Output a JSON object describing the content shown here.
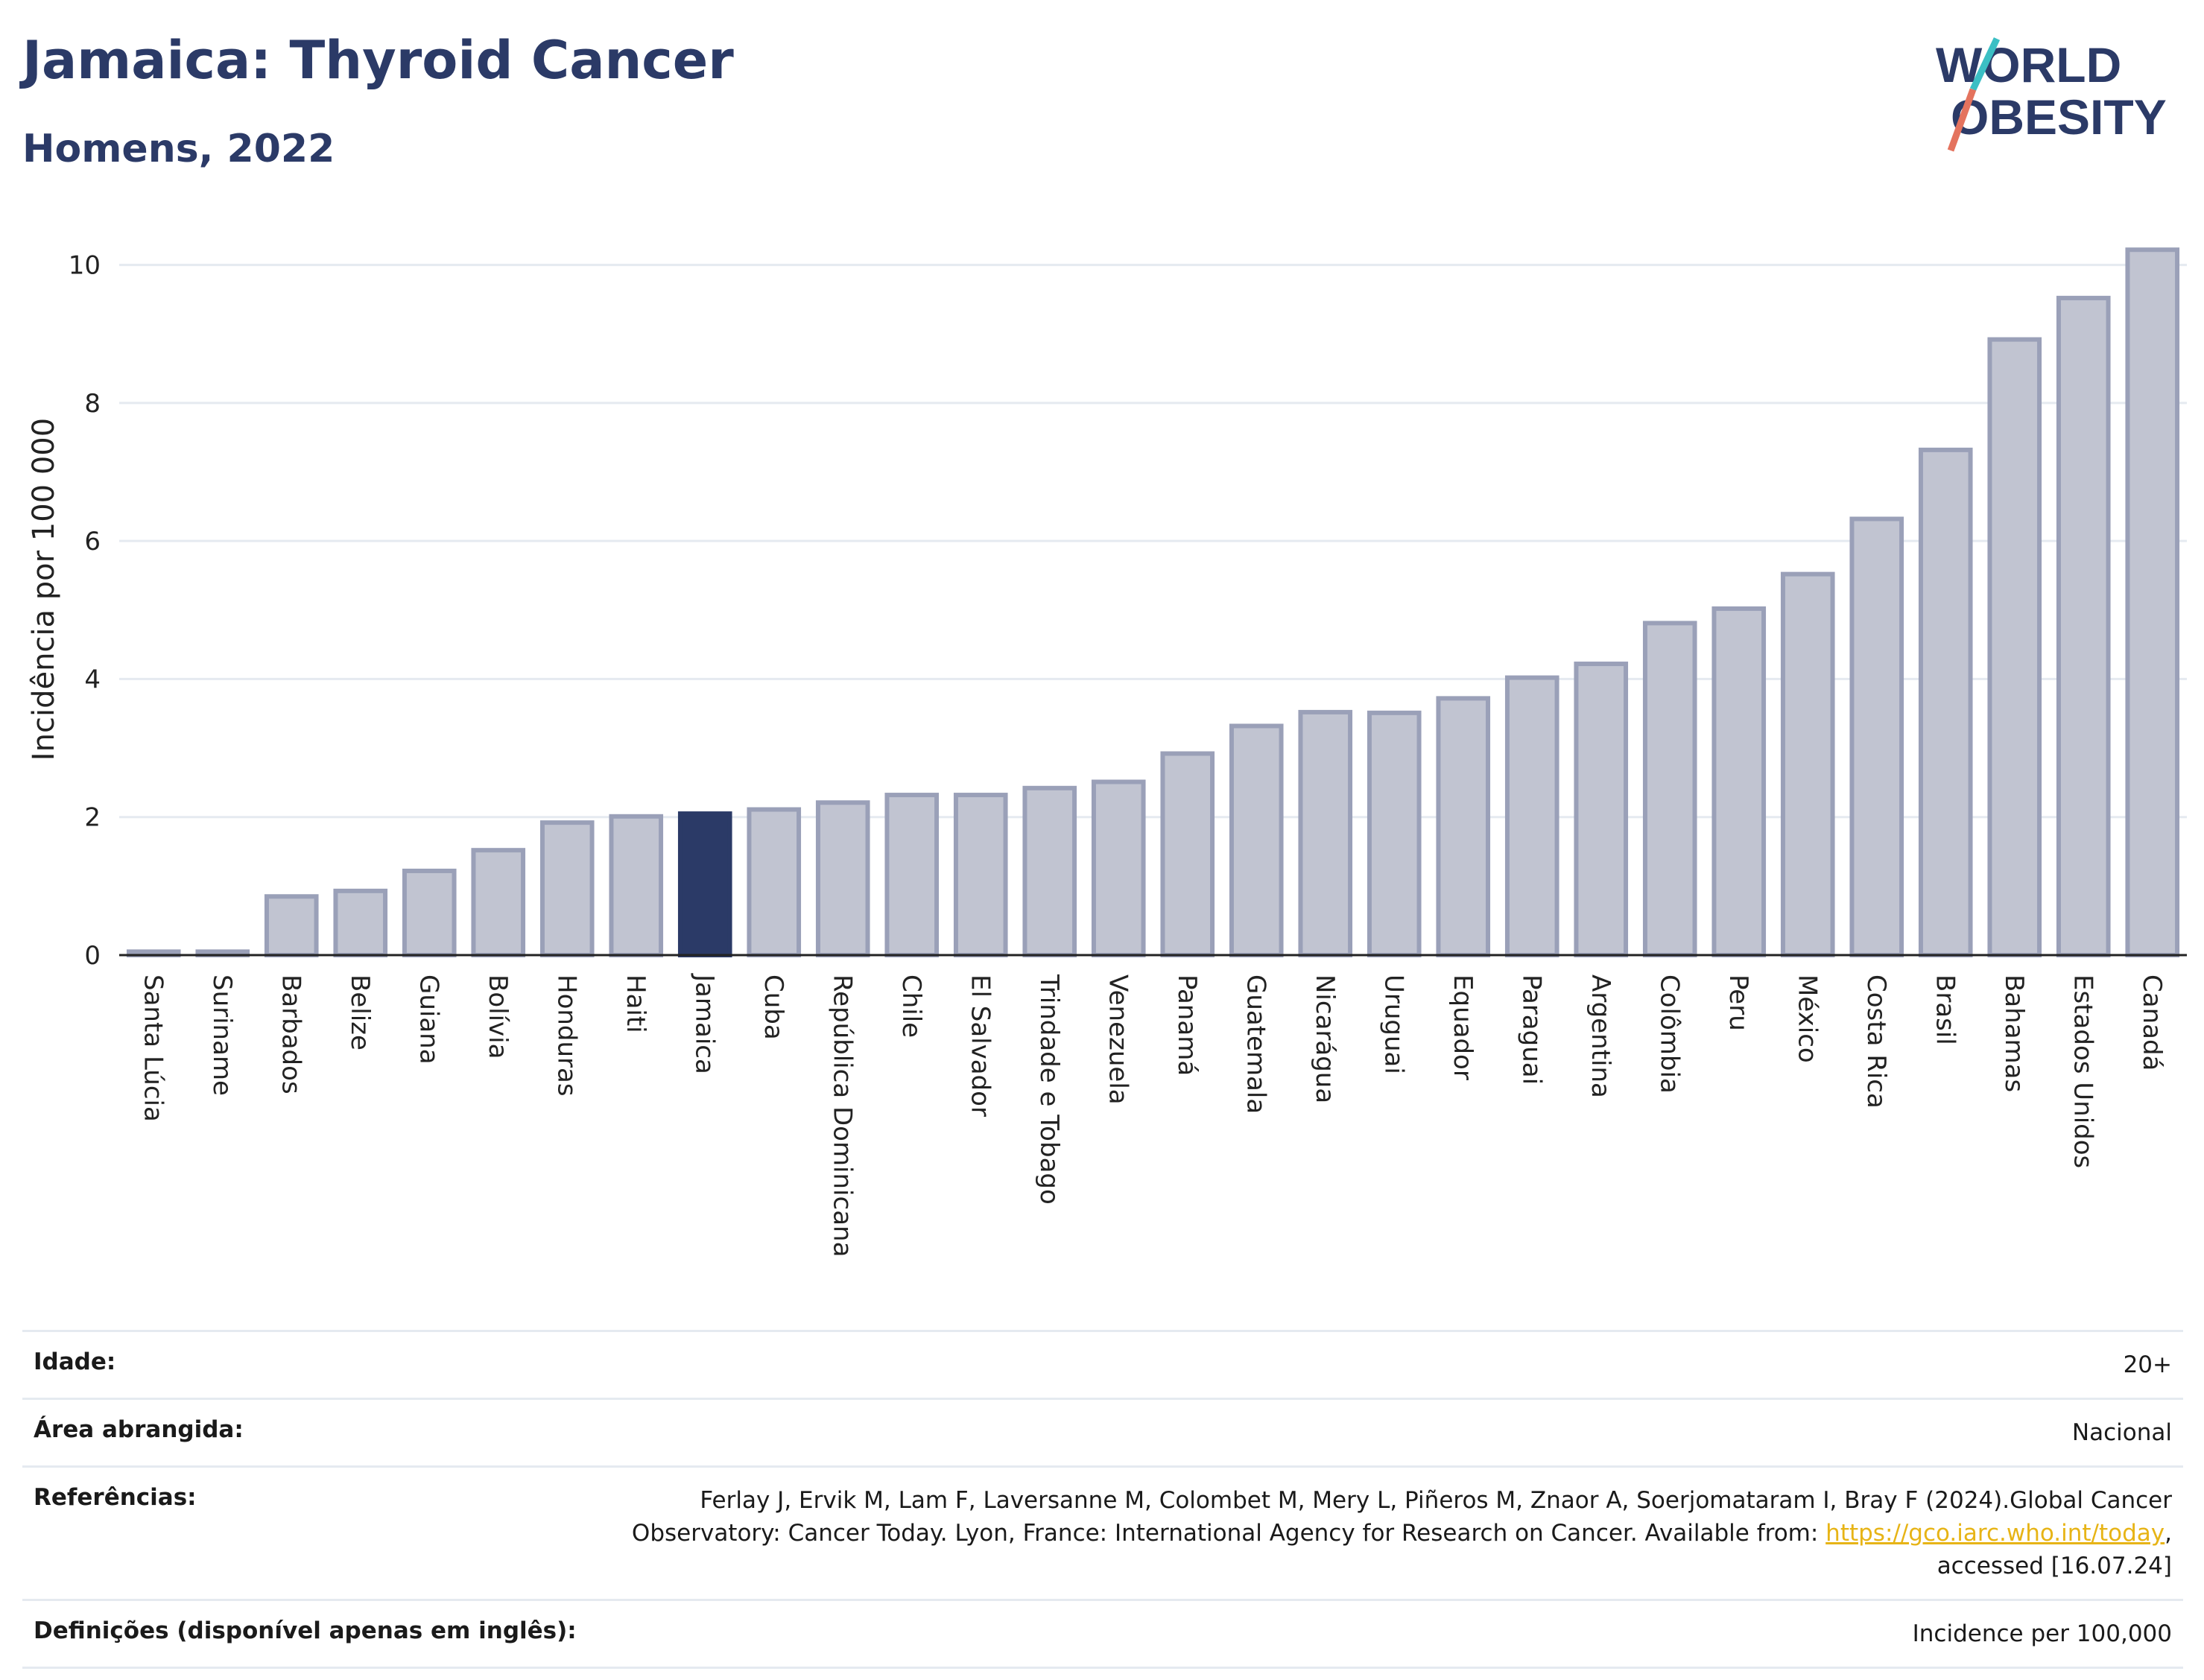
{
  "header": {
    "title": "Jamaica: Thyroid Cancer",
    "subtitle": "Homens, 2022",
    "logo_line1": "WORLD",
    "logo_line2": "OBESITY"
  },
  "colors": {
    "bar": "#c1c4d1",
    "bar_edge": "#9aa0b8",
    "highlight": "#2b3a67",
    "title": "#2b3a67",
    "grid": "#e5eaf0",
    "logo_teal": "#3bbfc4",
    "logo_coral": "#e4735e",
    "link": "#e7b416"
  },
  "chart_data": {
    "type": "bar",
    "title": "Jamaica: Thyroid Cancer",
    "subtitle": "Homens, 2022",
    "xlabel": "",
    "ylabel": "Incidência por 100 000",
    "ylim": [
      0,
      10.6
    ],
    "yticks": [
      0,
      2,
      4,
      6,
      8,
      10
    ],
    "grid": true,
    "highlight": "Jamaica",
    "categories": [
      "Santa Lúcia",
      "Suriname",
      "Barbados",
      "Belize",
      "Guiana",
      "Bolívia",
      "Honduras",
      "Haiti",
      "Jamaica",
      "Cuba",
      "República Dominicana",
      "Chile",
      "El Salvador",
      "Trindade e Tobago",
      "Venezuela",
      "Panamá",
      "Guatemala",
      "Nicarágua",
      "Uruguai",
      "Equador",
      "Paraguai",
      "Argentina",
      "Colômbia",
      "Peru",
      "México",
      "Costa Rica",
      "Brasil",
      "Bahamas",
      "Estados Unidos",
      "Canadá"
    ],
    "values": [
      0.05,
      0.05,
      0.85,
      0.93,
      1.22,
      1.52,
      1.92,
      2.01,
      2.05,
      2.11,
      2.21,
      2.32,
      2.32,
      2.42,
      2.51,
      2.92,
      3.32,
      3.52,
      3.51,
      3.72,
      4.02,
      4.22,
      4.81,
      5.02,
      5.52,
      6.32,
      7.32,
      8.92,
      9.52,
      10.22
    ]
  },
  "info": {
    "age_label": "Idade:",
    "age_value": "20+",
    "area_label": "Área abrangida:",
    "area_value": "Nacional",
    "refs_label": "Referências:",
    "refs_text_1": "Ferlay J, Ervik M, Lam F, Laversanne M, Colombet M, Mery L, Piñeros M, Znaor A, Soerjomataram I, Bray F (2024).Global Cancer Observatory: Cancer Today. Lyon, France: International Agency for Research on Cancer. Available from: ",
    "refs_link": "https://gco.iarc.who.int/today",
    "refs_text_2": ", accessed [16.07.24]",
    "defs_label": "Definições (disponível apenas em inglês):",
    "defs_value": "Incidence per 100,000"
  }
}
